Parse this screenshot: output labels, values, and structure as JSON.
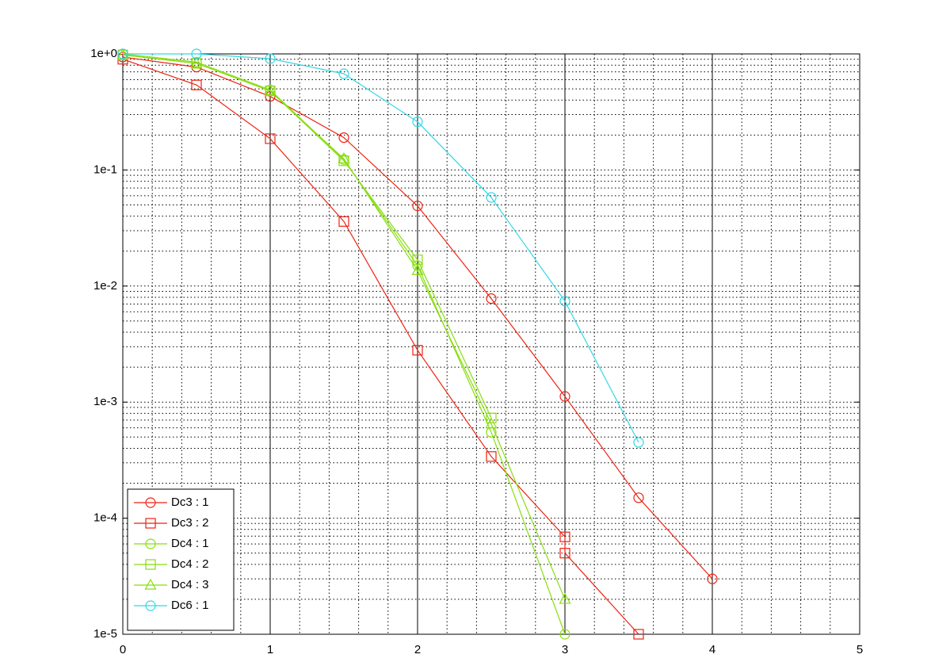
{
  "chart_data": {
    "type": "line",
    "xlim": [
      0,
      5
    ],
    "xticks": [
      0,
      1,
      2,
      3,
      4,
      5
    ],
    "ylim": [
      1e-05,
      1
    ],
    "log_y": true,
    "yticks": [
      {
        "value": 1,
        "label": "1e+0"
      },
      {
        "value": 0.1,
        "label": "1e-1"
      },
      {
        "value": 0.01,
        "label": "1e-2"
      },
      {
        "value": 0.001,
        "label": "1e-3"
      },
      {
        "value": 0.0001,
        "label": "1e-4"
      },
      {
        "value": 1e-05,
        "label": "1e-5"
      }
    ],
    "grid": true,
    "minor_grid": true,
    "legend": "lower left",
    "series": [
      {
        "name": "Dc3 : 1",
        "color": "#ee2211",
        "marker": "circle",
        "x": [
          0,
          0.5,
          1,
          1.5,
          2,
          2.5,
          3,
          3.5,
          4
        ],
        "values": [
          0.94,
          0.77,
          0.43,
          0.19,
          0.049,
          0.0078,
          0.00112,
          0.00015,
          3e-05
        ]
      },
      {
        "name": "Dc3 : 2",
        "color": "#ee2211",
        "marker": "square",
        "x": [
          0,
          0.5,
          1,
          1.5,
          2,
          2.5,
          3,
          3,
          3.5
        ],
        "values": [
          0.9,
          0.54,
          0.186,
          0.036,
          0.0028,
          0.00034,
          6.9e-05,
          5e-05,
          1e-05
        ]
      },
      {
        "name": "Dc4 : 1",
        "color": "#88dd11",
        "marker": "circle",
        "x": [
          0,
          0.5,
          1,
          1.5,
          2,
          2.5,
          3
        ],
        "values": [
          1,
          0.85,
          0.49,
          0.123,
          0.015,
          0.00055,
          1e-05
        ]
      },
      {
        "name": "Dc4 : 2",
        "color": "#88dd11",
        "marker": "square",
        "x": [
          0,
          0.5,
          1,
          1.5,
          2,
          2.5
        ],
        "values": [
          0.98,
          0.83,
          0.48,
          0.12,
          0.0168,
          0.00073
        ]
      },
      {
        "name": "Dc4 : 3",
        "color": "#88dd11",
        "marker": "triangle",
        "x": [
          0,
          0.5,
          1,
          1.5,
          2,
          2.5,
          3
        ],
        "values": [
          0.98,
          0.83,
          0.48,
          0.125,
          0.0136,
          0.00065,
          2e-05
        ]
      },
      {
        "name": "Dc6 : 1",
        "color": "#33d6e6",
        "marker": "circle",
        "x": [
          0,
          0.5,
          1,
          1.5,
          2,
          2.5,
          3,
          3.5
        ],
        "values": [
          1,
          1,
          0.91,
          0.675,
          0.26,
          0.058,
          0.0074,
          0.00045
        ]
      }
    ]
  }
}
